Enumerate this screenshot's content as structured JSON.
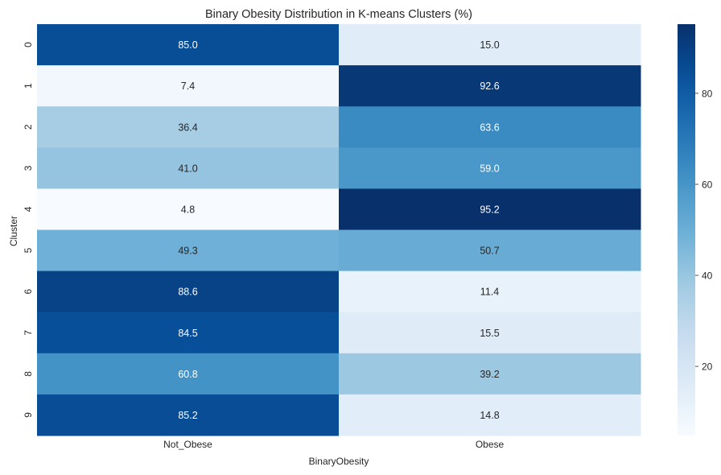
{
  "chart_data": {
    "type": "heatmap",
    "title": "Binary Obesity Distribution in K-means Clusters (%)",
    "xlabel": "BinaryObesity",
    "ylabel": "Cluster",
    "x_categories": [
      "Not_Obese",
      "Obese"
    ],
    "y_categories": [
      "0",
      "1",
      "2",
      "3",
      "4",
      "5",
      "6",
      "7",
      "8",
      "9"
    ],
    "values": [
      [
        85.0,
        15.0
      ],
      [
        7.4,
        92.6
      ],
      [
        36.4,
        63.6
      ],
      [
        41.0,
        59.0
      ],
      [
        4.8,
        95.2
      ],
      [
        49.3,
        50.7
      ],
      [
        88.6,
        11.4
      ],
      [
        84.5,
        15.5
      ],
      [
        60.8,
        39.2
      ],
      [
        85.2,
        14.8
      ]
    ],
    "value_labels": [
      [
        "85.0",
        "15.0"
      ],
      [
        "7.4",
        "92.6"
      ],
      [
        "36.4",
        "63.6"
      ],
      [
        "41.0",
        "59.0"
      ],
      [
        "4.8",
        "95.2"
      ],
      [
        "49.3",
        "50.7"
      ],
      [
        "88.6",
        "11.4"
      ],
      [
        "84.5",
        "15.5"
      ],
      [
        "60.8",
        "39.2"
      ],
      [
        "85.2",
        "14.8"
      ]
    ],
    "colormap": "Blues",
    "color_range": [
      4.8,
      95.2
    ],
    "colorbar_ticks": [
      20,
      40,
      60,
      80
    ],
    "colorbar_tick_labels": [
      "20",
      "40",
      "60",
      "80"
    ],
    "colorbar_position": "right",
    "grid": false
  }
}
